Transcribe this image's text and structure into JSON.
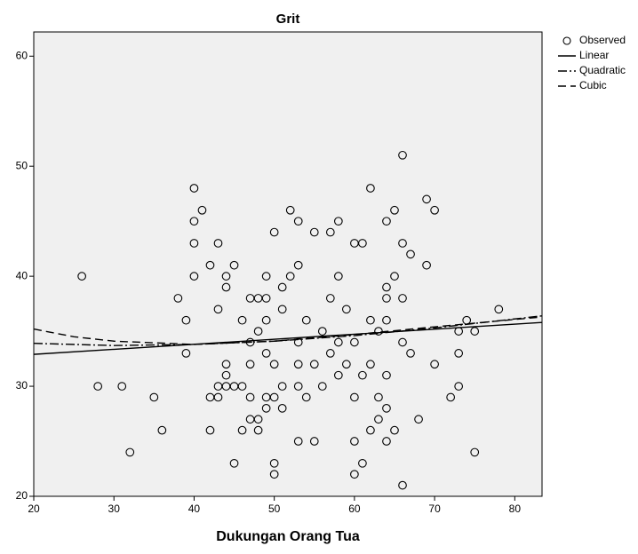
{
  "chart_data": {
    "type": "scatter",
    "title": "Grit",
    "x_label": "Dukungan Orang Tua",
    "xlim": [
      20,
      83.4
    ],
    "ylim": [
      20,
      62.2
    ],
    "xticks": [
      20,
      30,
      40,
      50,
      60,
      70,
      80
    ],
    "yticks": [
      20,
      30,
      40,
      50,
      60
    ],
    "legend": "top-right",
    "series": [
      {
        "name": "Observed",
        "color": "#000000",
        "x": [
          26,
          28,
          31,
          32,
          35,
          36,
          38,
          39,
          39,
          40,
          40,
          40,
          40,
          41,
          42,
          42,
          42,
          43,
          43,
          43,
          43,
          44,
          44,
          44,
          44,
          44,
          45,
          45,
          45,
          46,
          46,
          46,
          47,
          47,
          47,
          47,
          47,
          48,
          48,
          48,
          48,
          49,
          49,
          49,
          49,
          49,
          49,
          50,
          50,
          50,
          50,
          50,
          51,
          51,
          51,
          51,
          52,
          52,
          53,
          53,
          53,
          53,
          53,
          53,
          54,
          54,
          55,
          55,
          55,
          56,
          56,
          57,
          57,
          57,
          58,
          58,
          58,
          58,
          59,
          59,
          60,
          60,
          60,
          60,
          60,
          61,
          61,
          61,
          62,
          62,
          62,
          62,
          63,
          63,
          63,
          64,
          64,
          64,
          64,
          64,
          64,
          64,
          65,
          65,
          65,
          66,
          66,
          66,
          66,
          66,
          67,
          67,
          68,
          69,
          69,
          70,
          70,
          72,
          73,
          73,
          73,
          74,
          75,
          75,
          78
        ],
        "values": [
          40,
          30,
          30,
          24,
          29,
          26,
          38,
          36,
          33,
          48,
          45,
          43,
          40,
          46,
          41,
          29,
          26,
          43,
          37,
          30,
          29,
          40,
          39,
          32,
          31,
          30,
          41,
          30,
          23,
          30,
          36,
          26,
          38,
          34,
          32,
          29,
          27,
          38,
          35,
          27,
          26,
          40,
          38,
          36,
          33,
          29,
          28,
          44,
          32,
          29,
          23,
          22,
          39,
          37,
          30,
          28,
          46,
          40,
          45,
          41,
          34,
          32,
          30,
          25,
          36,
          29,
          44,
          32,
          25,
          35,
          30,
          44,
          38,
          33,
          45,
          40,
          34,
          31,
          37,
          32,
          43,
          34,
          29,
          25,
          22,
          43,
          31,
          23,
          48,
          36,
          32,
          26,
          35,
          29,
          27,
          45,
          39,
          38,
          36,
          31,
          28,
          25,
          46,
          40,
          26,
          51,
          43,
          38,
          34,
          21,
          42,
          33,
          27,
          47,
          41,
          46,
          32,
          29,
          35,
          33,
          30,
          36,
          35,
          24,
          37
        ]
      }
    ],
    "fit_lines": [
      {
        "name": "Linear",
        "style": "solid",
        "x": [
          20,
          83.4
        ],
        "values": [
          32.9,
          35.8
        ]
      },
      {
        "name": "Quadratic",
        "style": "dashdot",
        "x": [
          20,
          30,
          40,
          50,
          60,
          70,
          83.4
        ],
        "values": [
          33.9,
          33.7,
          33.8,
          34.1,
          34.6,
          35.3,
          36.4
        ]
      },
      {
        "name": "Cubic",
        "style": "dashed",
        "x": [
          20,
          25,
          30,
          40,
          50,
          60,
          70,
          83.4
        ],
        "values": [
          35.2,
          34.5,
          34.1,
          33.8,
          34.1,
          34.7,
          35.4,
          36.3
        ]
      }
    ]
  }
}
